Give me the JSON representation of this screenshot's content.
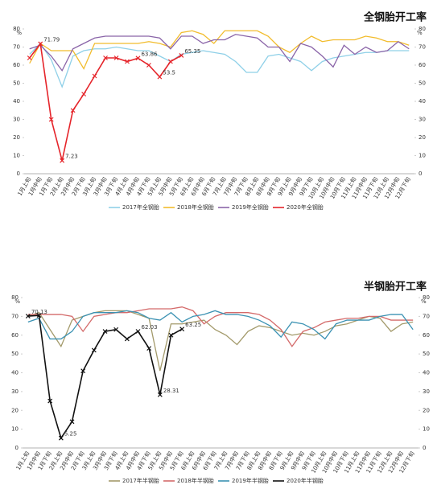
{
  "chart_data": [
    {
      "type": "line",
      "title": "全钢胎开工率",
      "categories": [
        "1月上旬",
        "1月中旬",
        "1月下旬",
        "2月上旬",
        "2月中旬",
        "2月下旬",
        "3月上旬",
        "3月中旬",
        "3月下旬",
        "4月上旬",
        "4月中旬",
        "4月下旬",
        "5月上旬",
        "5月中旬",
        "5月下旬",
        "6月上旬",
        "6月中旬",
        "6月下旬",
        "7月上旬",
        "7月中旬",
        "7月下旬",
        "8月上旬",
        "8月中旬",
        "8月下旬",
        "9月上旬",
        "9月中旬",
        "9月下旬",
        "10月上旬",
        "10月中旬",
        "10月下旬",
        "11月上旬",
        "11月中旬",
        "11月下旬",
        "12月上旬",
        "12月中旬",
        "12月下旬"
      ],
      "series": [
        {
          "name": "2017年全钢胎",
          "color": "#8fd0e8",
          "values": [
            66,
            72,
            63,
            48,
            65,
            68,
            69,
            69,
            70,
            69,
            68,
            68,
            65,
            62,
            66,
            67,
            68,
            67,
            66,
            62,
            56,
            56,
            65,
            66,
            64,
            62,
            57,
            62,
            64,
            65,
            66,
            67,
            67,
            68,
            68,
            68
          ]
        },
        {
          "name": "2018年全钢胎",
          "color": "#f2bc2c",
          "values": [
            61,
            72,
            68,
            68,
            68,
            58,
            72,
            72,
            72,
            72,
            72,
            73,
            72,
            70,
            78,
            79,
            77,
            72,
            79,
            79,
            79,
            79,
            76,
            70,
            67,
            72,
            76,
            73,
            74,
            74,
            74,
            76,
            75,
            73,
            73,
            71
          ]
        },
        {
          "name": "2019年全钢胎",
          "color": "#8a64a8",
          "values": [
            69,
            71,
            65,
            57,
            69,
            72,
            75,
            76,
            76,
            76,
            76,
            76,
            75,
            69,
            76,
            76,
            72,
            74,
            74,
            77,
            76,
            75,
            70,
            70,
            62,
            72,
            70,
            65,
            59,
            71,
            66,
            70,
            67,
            68,
            73,
            69
          ]
        },
        {
          "name": "2020年全钢胎",
          "color": "#e5242a",
          "values": [
            64,
            71.79,
            30,
            7.23,
            35,
            44,
            54,
            64,
            64,
            62,
            63.86,
            60,
            53.5,
            62,
            65.35,
            null,
            null,
            null,
            null,
            null,
            null,
            null,
            null,
            null,
            null,
            null,
            null,
            null,
            null,
            null,
            null,
            null,
            null,
            null,
            null,
            null
          ],
          "labeled_points": [
            1,
            3,
            10,
            12,
            14
          ]
        }
      ],
      "ylim": [
        0,
        80
      ],
      "yticks": [
        0,
        10,
        20,
        30,
        40,
        50,
        60,
        70,
        80
      ],
      "y2lim": [
        0,
        80
      ],
      "y2ticks": [
        0,
        10,
        20,
        30,
        40,
        50,
        60,
        70,
        80
      ],
      "y_unit": "%",
      "y2_unit": "%",
      "grid": false
    },
    {
      "type": "line",
      "title": "半钢胎开工率",
      "categories": [
        "1月上旬",
        "1月中旬",
        "1月下旬",
        "2月上旬",
        "2月中旬",
        "2月下旬",
        "3月上旬",
        "3月中旬",
        "3月下旬",
        "4月上旬",
        "4月中旬",
        "4月下旬",
        "5月上旬",
        "5月中旬",
        "5月下旬",
        "6月上旬",
        "6月中旬",
        "6月下旬",
        "7月上旬",
        "7月中旬",
        "7月下旬",
        "8月上旬",
        "8月中旬",
        "8月下旬",
        "9月上旬",
        "9月中旬",
        "9月下旬",
        "10月上旬",
        "10月中旬",
        "10月下旬",
        "11月上旬",
        "11月中旬",
        "11月下旬",
        "12月上旬",
        "12月中旬",
        "12月下旬"
      ],
      "series": [
        {
          "name": "2017年半钢胎",
          "color": "#a39a6b",
          "values": [
            70,
            72,
            63,
            54,
            68,
            70,
            72,
            73,
            73,
            73,
            71,
            69,
            41,
            66,
            66,
            67,
            68,
            63,
            60,
            55,
            62,
            65,
            64,
            62,
            60,
            61,
            60,
            62,
            65,
            66,
            68,
            70,
            69,
            62,
            66,
            67
          ]
        },
        {
          "name": "2018年半钢胎",
          "color": "#d46a6a",
          "values": [
            71,
            71,
            71,
            71,
            70,
            62,
            70,
            71,
            72,
            72,
            73,
            74,
            74,
            74,
            75,
            73,
            66,
            70,
            72,
            72,
            72,
            71,
            68,
            63,
            54,
            62,
            64,
            67,
            68,
            69,
            69,
            70,
            70,
            68,
            68,
            68
          ]
        },
        {
          "name": "2019年半钢胎",
          "color": "#3b92b3",
          "values": [
            67,
            69,
            58,
            58,
            62,
            70,
            72,
            72,
            72,
            73,
            72,
            69,
            68,
            72,
            67,
            70,
            71,
            73,
            71,
            71,
            70,
            68,
            65,
            59,
            67,
            66,
            63,
            58,
            66,
            68,
            68,
            68,
            70,
            71,
            71,
            63
          ]
        },
        {
          "name": "2020年半钢胎",
          "color": "#111111",
          "values": [
            70.13,
            70.5,
            25,
            5.25,
            14,
            41,
            52,
            62,
            63,
            58,
            62.03,
            53,
            28.31,
            60,
            63.25,
            null,
            null,
            null,
            null,
            null,
            null,
            null,
            null,
            null,
            null,
            null,
            null,
            null,
            null,
            null,
            null,
            null,
            null,
            null,
            null,
            null
          ],
          "labeled_points": [
            0,
            3,
            10,
            12,
            14
          ]
        }
      ],
      "ylim": [
        0,
        80
      ],
      "yticks": [
        0,
        10,
        20,
        30,
        40,
        50,
        60,
        70,
        80
      ],
      "y2lim": [
        0,
        80
      ],
      "y2ticks": [
        0,
        10,
        20,
        30,
        40,
        50,
        60,
        70,
        80
      ],
      "y_unit": "%",
      "y2_unit": "%",
      "grid": false
    }
  ]
}
